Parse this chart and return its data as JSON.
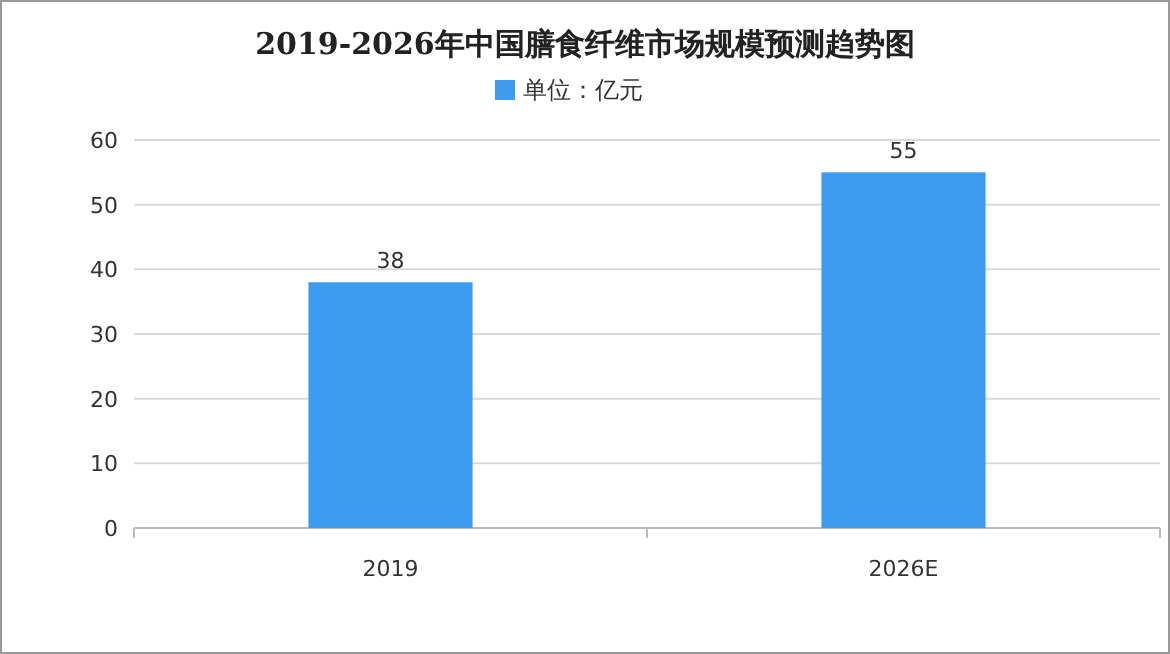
{
  "chart_data": {
    "type": "bar",
    "title": "2019-2026年中国膳食纤维市场规模预测趋势图",
    "categories": [
      "2019",
      "2026E"
    ],
    "series": [
      {
        "name": "单位：亿元",
        "color": "#3d9cf0",
        "values": [
          38,
          55
        ]
      }
    ],
    "ylim": [
      0,
      60
    ],
    "yticks": [
      0,
      10,
      20,
      30,
      40,
      50,
      60
    ],
    "grid": "y",
    "legend": "top",
    "data_labels": true
  }
}
